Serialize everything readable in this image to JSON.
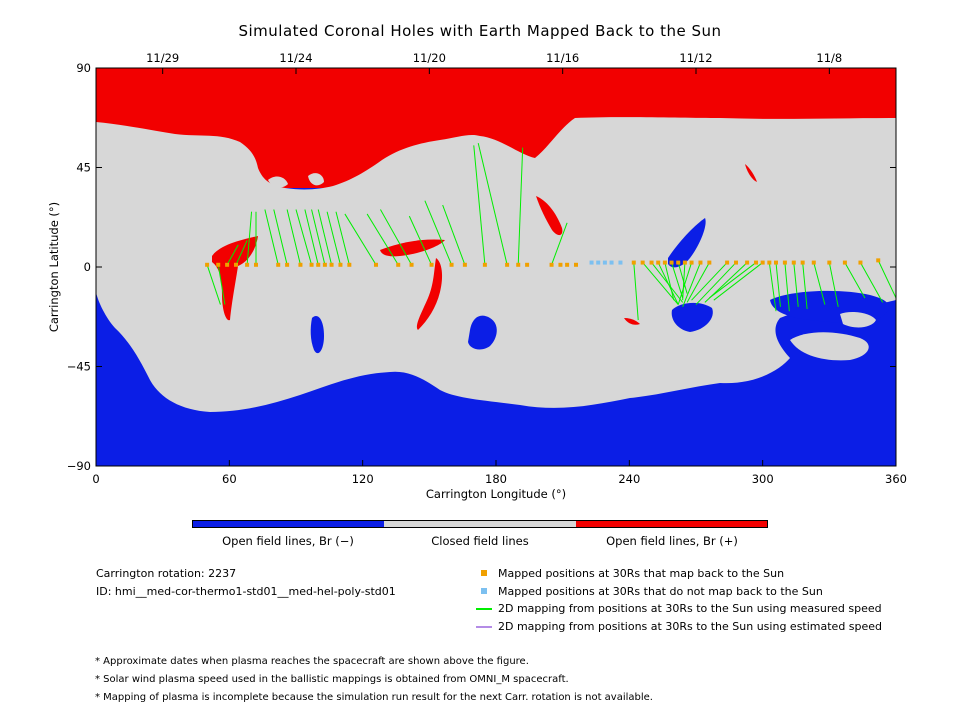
{
  "chart_data": {
    "type": "map",
    "title": "Simulated Coronal Holes with Earth Mapped Back to the Sun",
    "xlabel": "Carrington Longitude (°)",
    "ylabel": "Carrington Latitude (°)",
    "xlim": [
      0,
      360
    ],
    "ylim": [
      -90,
      90
    ],
    "x_ticks": [
      0,
      60,
      120,
      180,
      240,
      300,
      360
    ],
    "y_ticks": [
      -90,
      -45,
      0,
      45,
      90
    ],
    "date_ticks": [
      {
        "label": "11/29",
        "lon": 30
      },
      {
        "label": "11/24",
        "lon": 90
      },
      {
        "label": "11/20",
        "lon": 150
      },
      {
        "label": "11/16",
        "lon": 210
      },
      {
        "label": "11/12",
        "lon": 270
      },
      {
        "label": "11/8",
        "lon": 330
      }
    ],
    "colors": {
      "open_negative": "#0b1ee6",
      "closed": "#d7d7d7",
      "open_positive": "#f20000",
      "mapped": "#f0a000",
      "unmapped": "#7cc0f0",
      "measured_line": "#00ee00",
      "estimated_line": "#b48ce6"
    },
    "mapped_points": [
      {
        "lon": 50,
        "lat": 1
      },
      {
        "lon": 55,
        "lat": 1
      },
      {
        "lon": 59,
        "lat": 1
      },
      {
        "lon": 63,
        "lat": 1
      },
      {
        "lon": 68,
        "lat": 1
      },
      {
        "lon": 72,
        "lat": 1
      },
      {
        "lon": 82,
        "lat": 1
      },
      {
        "lon": 86,
        "lat": 1
      },
      {
        "lon": 92,
        "lat": 1
      },
      {
        "lon": 97,
        "lat": 1
      },
      {
        "lon": 100,
        "lat": 1
      },
      {
        "lon": 103,
        "lat": 1
      },
      {
        "lon": 106,
        "lat": 1
      },
      {
        "lon": 110,
        "lat": 1
      },
      {
        "lon": 114,
        "lat": 1
      },
      {
        "lon": 126,
        "lat": 1
      },
      {
        "lon": 136,
        "lat": 1
      },
      {
        "lon": 142,
        "lat": 1
      },
      {
        "lon": 151,
        "lat": 1
      },
      {
        "lon": 160,
        "lat": 1
      },
      {
        "lon": 166,
        "lat": 1
      },
      {
        "lon": 175,
        "lat": 1
      },
      {
        "lon": 185,
        "lat": 1
      },
      {
        "lon": 190,
        "lat": 1
      },
      {
        "lon": 194,
        "lat": 1
      },
      {
        "lon": 205,
        "lat": 1
      },
      {
        "lon": 209,
        "lat": 1
      },
      {
        "lon": 212,
        "lat": 1
      },
      {
        "lon": 216,
        "lat": 1
      },
      {
        "lon": 242,
        "lat": 2
      },
      {
        "lon": 246,
        "lat": 2
      },
      {
        "lon": 250,
        "lat": 2
      },
      {
        "lon": 253,
        "lat": 2
      },
      {
        "lon": 256,
        "lat": 2
      },
      {
        "lon": 259,
        "lat": 2
      },
      {
        "lon": 262,
        "lat": 2
      },
      {
        "lon": 265,
        "lat": 2
      },
      {
        "lon": 268,
        "lat": 2
      },
      {
        "lon": 272,
        "lat": 2
      },
      {
        "lon": 276,
        "lat": 2
      },
      {
        "lon": 284,
        "lat": 2
      },
      {
        "lon": 288,
        "lat": 2
      },
      {
        "lon": 293,
        "lat": 2
      },
      {
        "lon": 297,
        "lat": 2
      },
      {
        "lon": 300,
        "lat": 2
      },
      {
        "lon": 303,
        "lat": 2
      },
      {
        "lon": 306,
        "lat": 2
      },
      {
        "lon": 310,
        "lat": 2
      },
      {
        "lon": 314,
        "lat": 2
      },
      {
        "lon": 318,
        "lat": 2
      },
      {
        "lon": 323,
        "lat": 2
      },
      {
        "lon": 330,
        "lat": 2
      },
      {
        "lon": 337,
        "lat": 2
      },
      {
        "lon": 344,
        "lat": 2
      },
      {
        "lon": 352,
        "lat": 3
      }
    ],
    "unmapped_points": [
      {
        "lon": 223,
        "lat": 2
      },
      {
        "lon": 226,
        "lat": 2
      },
      {
        "lon": 229,
        "lat": 2
      },
      {
        "lon": 232,
        "lat": 2
      },
      {
        "lon": 236,
        "lat": 2
      }
    ],
    "measured_mappings": [
      {
        "from": [
          50,
          1
        ],
        "to": [
          56,
          -17
        ]
      },
      {
        "from": [
          55,
          1
        ],
        "to": [
          58,
          -17
        ]
      },
      {
        "from": [
          59,
          1
        ],
        "to": [
          64,
          10
        ]
      },
      {
        "from": [
          63,
          1
        ],
        "to": [
          68,
          12
        ]
      },
      {
        "from": [
          68,
          1
        ],
        "to": [
          70,
          25
        ]
      },
      {
        "from": [
          72,
          1
        ],
        "to": [
          72,
          25
        ]
      },
      {
        "from": [
          82,
          1
        ],
        "to": [
          76,
          26
        ]
      },
      {
        "from": [
          86,
          1
        ],
        "to": [
          80,
          26
        ]
      },
      {
        "from": [
          92,
          1
        ],
        "to": [
          86,
          26
        ]
      },
      {
        "from": [
          97,
          1
        ],
        "to": [
          90,
          26
        ]
      },
      {
        "from": [
          100,
          1
        ],
        "to": [
          94,
          26
        ]
      },
      {
        "from": [
          103,
          1
        ],
        "to": [
          97,
          26
        ]
      },
      {
        "from": [
          106,
          1
        ],
        "to": [
          100,
          26
        ]
      },
      {
        "from": [
          110,
          1
        ],
        "to": [
          104,
          25
        ]
      },
      {
        "from": [
          114,
          1
        ],
        "to": [
          108,
          25
        ]
      },
      {
        "from": [
          126,
          1
        ],
        "to": [
          112,
          24
        ]
      },
      {
        "from": [
          136,
          1
        ],
        "to": [
          122,
          24
        ]
      },
      {
        "from": [
          142,
          1
        ],
        "to": [
          128,
          26
        ]
      },
      {
        "from": [
          151,
          1
        ],
        "to": [
          141,
          23
        ]
      },
      {
        "from": [
          160,
          1
        ],
        "to": [
          148,
          30
        ]
      },
      {
        "from": [
          166,
          1
        ],
        "to": [
          156,
          28
        ]
      },
      {
        "from": [
          175,
          1
        ],
        "to": [
          170,
          55
        ]
      },
      {
        "from": [
          185,
          1
        ],
        "to": [
          172,
          56
        ]
      },
      {
        "from": [
          190,
          1
        ],
        "to": [
          192,
          54
        ]
      },
      {
        "from": [
          205,
          1
        ],
        "to": [
          212,
          20
        ]
      },
      {
        "from": [
          242,
          2
        ],
        "to": [
          244,
          -24
        ]
      },
      {
        "from": [
          246,
          2
        ],
        "to": [
          262,
          -17
        ]
      },
      {
        "from": [
          250,
          2
        ],
        "to": [
          264,
          -16
        ]
      },
      {
        "from": [
          253,
          2
        ],
        "to": [
          262,
          -17
        ]
      },
      {
        "from": [
          256,
          2
        ],
        "to": [
          260,
          -15
        ]
      },
      {
        "from": [
          259,
          2
        ],
        "to": [
          264,
          -14
        ]
      },
      {
        "from": [
          262,
          2
        ],
        "to": [
          266,
          -12
        ]
      },
      {
        "from": [
          265,
          2
        ],
        "to": [
          264,
          -15
        ]
      },
      {
        "from": [
          268,
          2
        ],
        "to": [
          262,
          -17
        ]
      },
      {
        "from": [
          272,
          2
        ],
        "to": [
          264,
          -18
        ]
      },
      {
        "from": [
          276,
          2
        ],
        "to": [
          266,
          -16
        ]
      },
      {
        "from": [
          284,
          2
        ],
        "to": [
          268,
          -15
        ]
      },
      {
        "from": [
          288,
          2
        ],
        "to": [
          270,
          -17
        ]
      },
      {
        "from": [
          293,
          2
        ],
        "to": [
          274,
          -16
        ]
      },
      {
        "from": [
          297,
          2
        ],
        "to": [
          276,
          -14
        ]
      },
      {
        "from": [
          300,
          2
        ],
        "to": [
          278,
          -15
        ]
      },
      {
        "from": [
          303,
          2
        ],
        "to": [
          306,
          -20
        ]
      },
      {
        "from": [
          306,
          2
        ],
        "to": [
          308,
          -18
        ]
      },
      {
        "from": [
          310,
          2
        ],
        "to": [
          312,
          -20
        ]
      },
      {
        "from": [
          314,
          2
        ],
        "to": [
          316,
          -18
        ]
      },
      {
        "from": [
          318,
          2
        ],
        "to": [
          320,
          -19
        ]
      },
      {
        "from": [
          323,
          2
        ],
        "to": [
          328,
          -17
        ]
      },
      {
        "from": [
          330,
          2
        ],
        "to": [
          334,
          -18
        ]
      },
      {
        "from": [
          337,
          2
        ],
        "to": [
          346,
          -14
        ]
      },
      {
        "from": [
          344,
          2
        ],
        "to": [
          354,
          -16
        ]
      },
      {
        "from": [
          352,
          3
        ],
        "to": [
          360,
          -14
        ]
      }
    ],
    "colorbar_labels": [
      "Open field lines, Br (−)",
      "Closed field lines",
      "Open field lines, Br (+)"
    ]
  },
  "info": {
    "rotation": "Carrington rotation: 2237",
    "id": "ID: hmi__med-cor-thermo1-std01__med-hel-poly-std01"
  },
  "legend": [
    {
      "label": "Mapped positions at 30Rs that map back to the Sun",
      "symbol": "square",
      "color": "#f0a000"
    },
    {
      "label": "Mapped positions at 30Rs that do not map back to the Sun",
      "symbol": "square",
      "color": "#7cc0f0"
    },
    {
      "label": "2D mapping from positions at 30Rs to the Sun using measured speed",
      "symbol": "line",
      "color": "#00ee00"
    },
    {
      "label": "2D mapping from positions at 30Rs to the Sun using estimated speed",
      "symbol": "line",
      "color": "#b48ce6"
    }
  ],
  "notes": [
    "* Approximate dates when plasma reaches the spacecraft are shown above the figure.",
    "* Solar wind plasma speed used in the ballistic mappings is obtained from OMNI_M spacecraft.",
    "* Mapping of plasma is incomplete because the simulation run result for the next Carr. rotation is not available."
  ]
}
